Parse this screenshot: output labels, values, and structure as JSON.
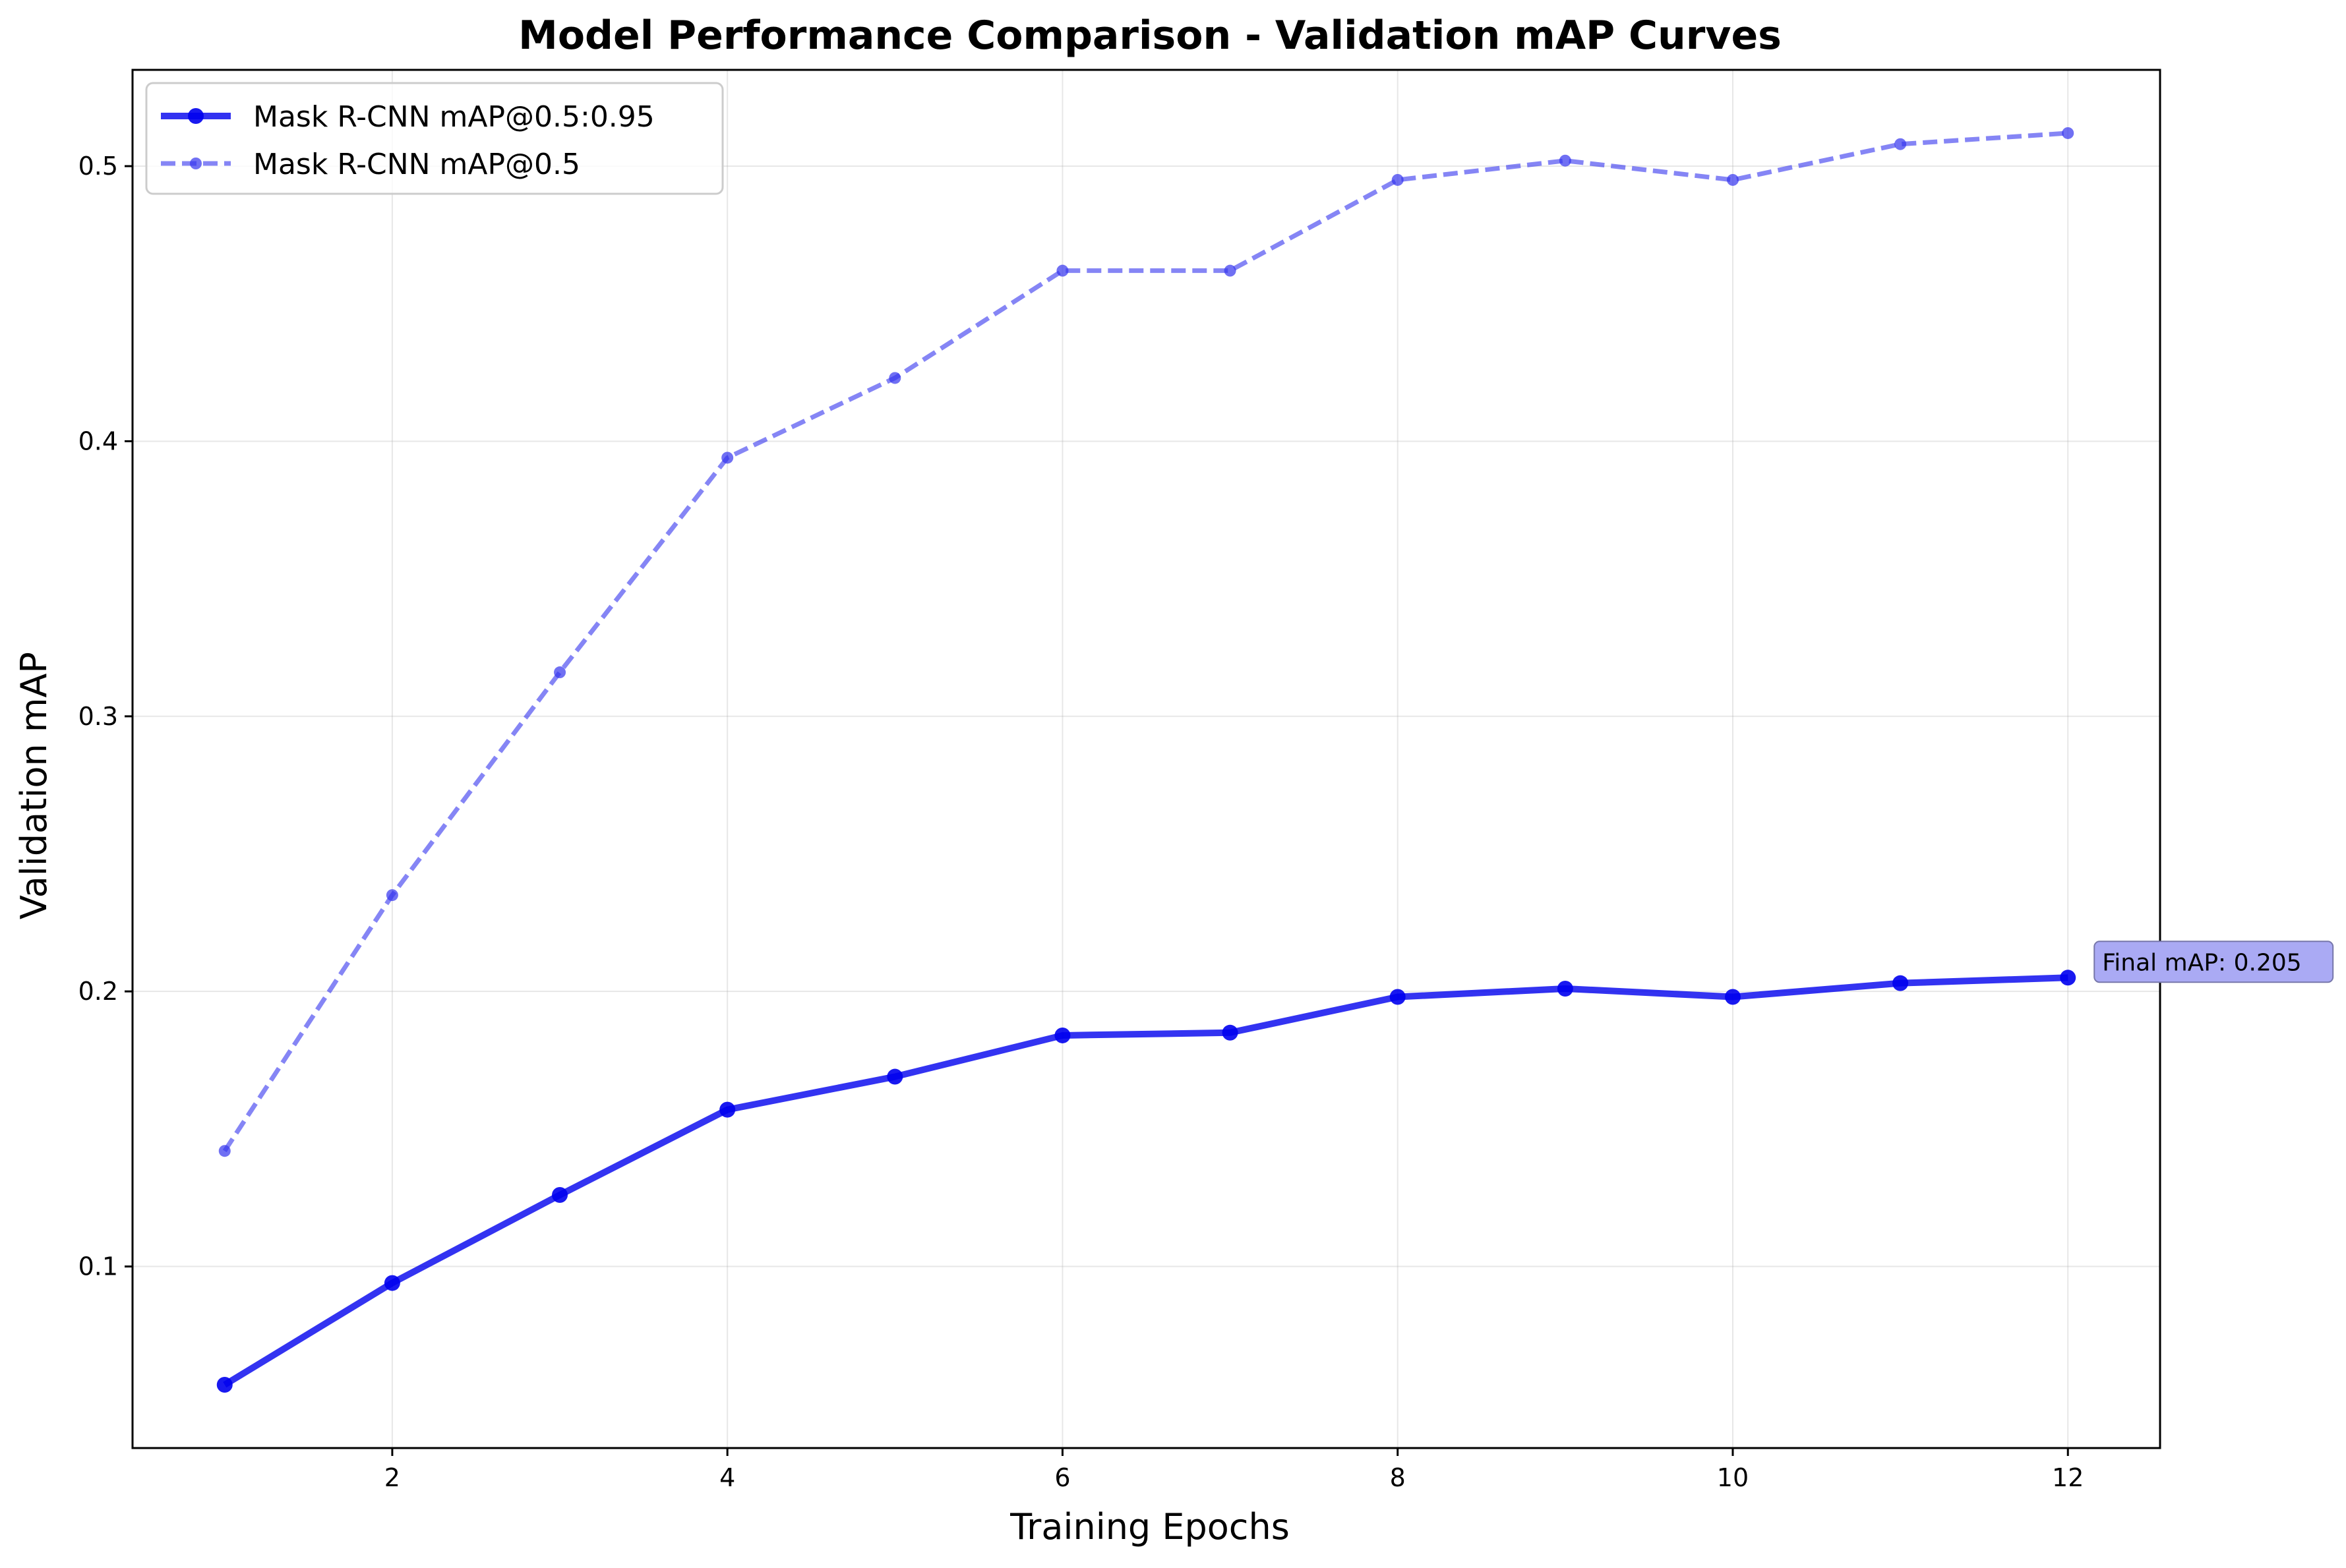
{
  "chart_data": {
    "type": "line",
    "title": "Model Performance Comparison - Validation mAP Curves",
    "xlabel": "Training Epochs",
    "ylabel": "Validation mAP",
    "xlim": [
      0.45,
      12.55
    ],
    "ylim": [
      0.034,
      0.535
    ],
    "xticks": [
      2,
      4,
      6,
      8,
      10,
      12
    ],
    "xtick_labels": [
      "2",
      "4",
      "6",
      "8",
      "10",
      "12"
    ],
    "yticks": [
      0.1,
      0.2,
      0.3,
      0.4,
      0.5
    ],
    "ytick_labels": [
      "0.1",
      "0.2",
      "0.3",
      "0.4",
      "0.5"
    ],
    "grid": true,
    "legend_position": "top-left",
    "x": [
      1,
      2,
      3,
      4,
      5,
      6,
      7,
      8,
      9,
      10,
      11,
      12
    ],
    "series": [
      {
        "name": "Mask R-CNN mAP@0.5:0.95",
        "values": [
          0.057,
          0.094,
          0.126,
          0.157,
          0.169,
          0.184,
          0.185,
          0.198,
          0.201,
          0.198,
          0.203,
          0.205
        ],
        "color": "#0000ee",
        "style": "solid"
      },
      {
        "name": "Mask R-CNN mAP@0.5",
        "values": [
          0.142,
          0.235,
          0.316,
          0.394,
          0.423,
          0.462,
          0.462,
          0.495,
          0.502,
          0.495,
          0.508,
          0.512
        ],
        "color": "#3333ee",
        "style": "dashed"
      }
    ],
    "annotation": {
      "text": "Final mAP: 0.205",
      "x": 12,
      "y": 0.205
    }
  }
}
